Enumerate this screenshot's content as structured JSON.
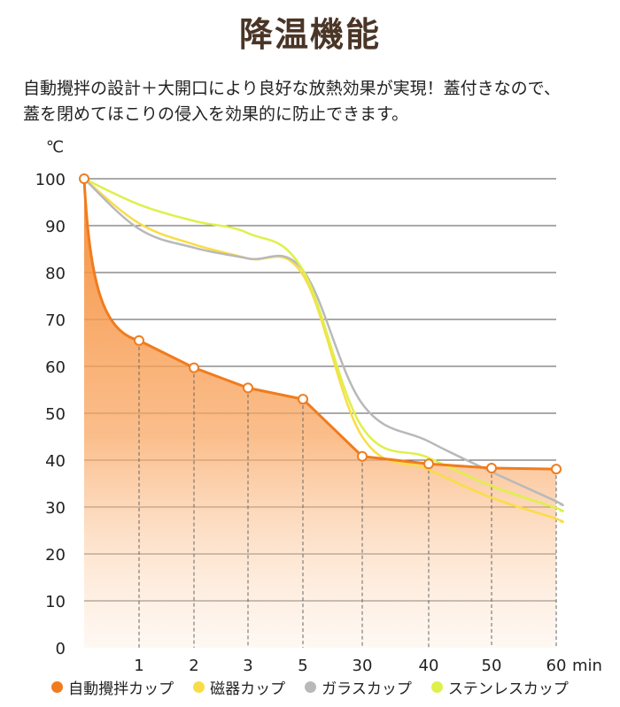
{
  "header": {
    "title": "降温機能",
    "desc_line1": "自動攪拌の設計＋大開口により良好な放熱効果が実現！蓋付きなので、",
    "desc_line2": "蓋を閉めてほこりの侵入を効果的に防止できます。"
  },
  "chart_data": {
    "type": "line",
    "ylabel": "℃",
    "xlabel": "min",
    "ylim": [
      0,
      100
    ],
    "yticks": [
      0,
      10,
      20,
      30,
      40,
      50,
      60,
      70,
      80,
      90,
      100
    ],
    "categories": [
      "0",
      "1",
      "2",
      "3",
      "5",
      "30",
      "40",
      "50",
      "60"
    ],
    "x_tick_labels": [
      "1",
      "2",
      "3",
      "5",
      "30",
      "40",
      "50",
      "60"
    ],
    "grid": true,
    "legend_position": "bottom",
    "series": [
      {
        "name": "自動攪拌カップ",
        "color": "#f07c1e",
        "filled": true,
        "markers": true,
        "values": [
          100,
          65.5,
          59.7,
          55.4,
          53,
          40.8,
          39.2,
          38.3,
          38.1
        ]
      },
      {
        "name": "磁器カップ",
        "color": "#f9dd47",
        "values": [
          100,
          90.5,
          86,
          83,
          79.5,
          45,
          38,
          32,
          27.5
        ]
      },
      {
        "name": "ガラスカップ",
        "color": "#b9b9b9",
        "values": [
          100,
          89.3,
          85.3,
          83,
          80.5,
          52,
          44,
          37.5,
          31.2
        ]
      },
      {
        "name": "ステンレスカップ",
        "color": "#def04a",
        "values": [
          100,
          94.5,
          91,
          88.4,
          80.5,
          47,
          40.5,
          34.5,
          29.8
        ]
      }
    ]
  }
}
